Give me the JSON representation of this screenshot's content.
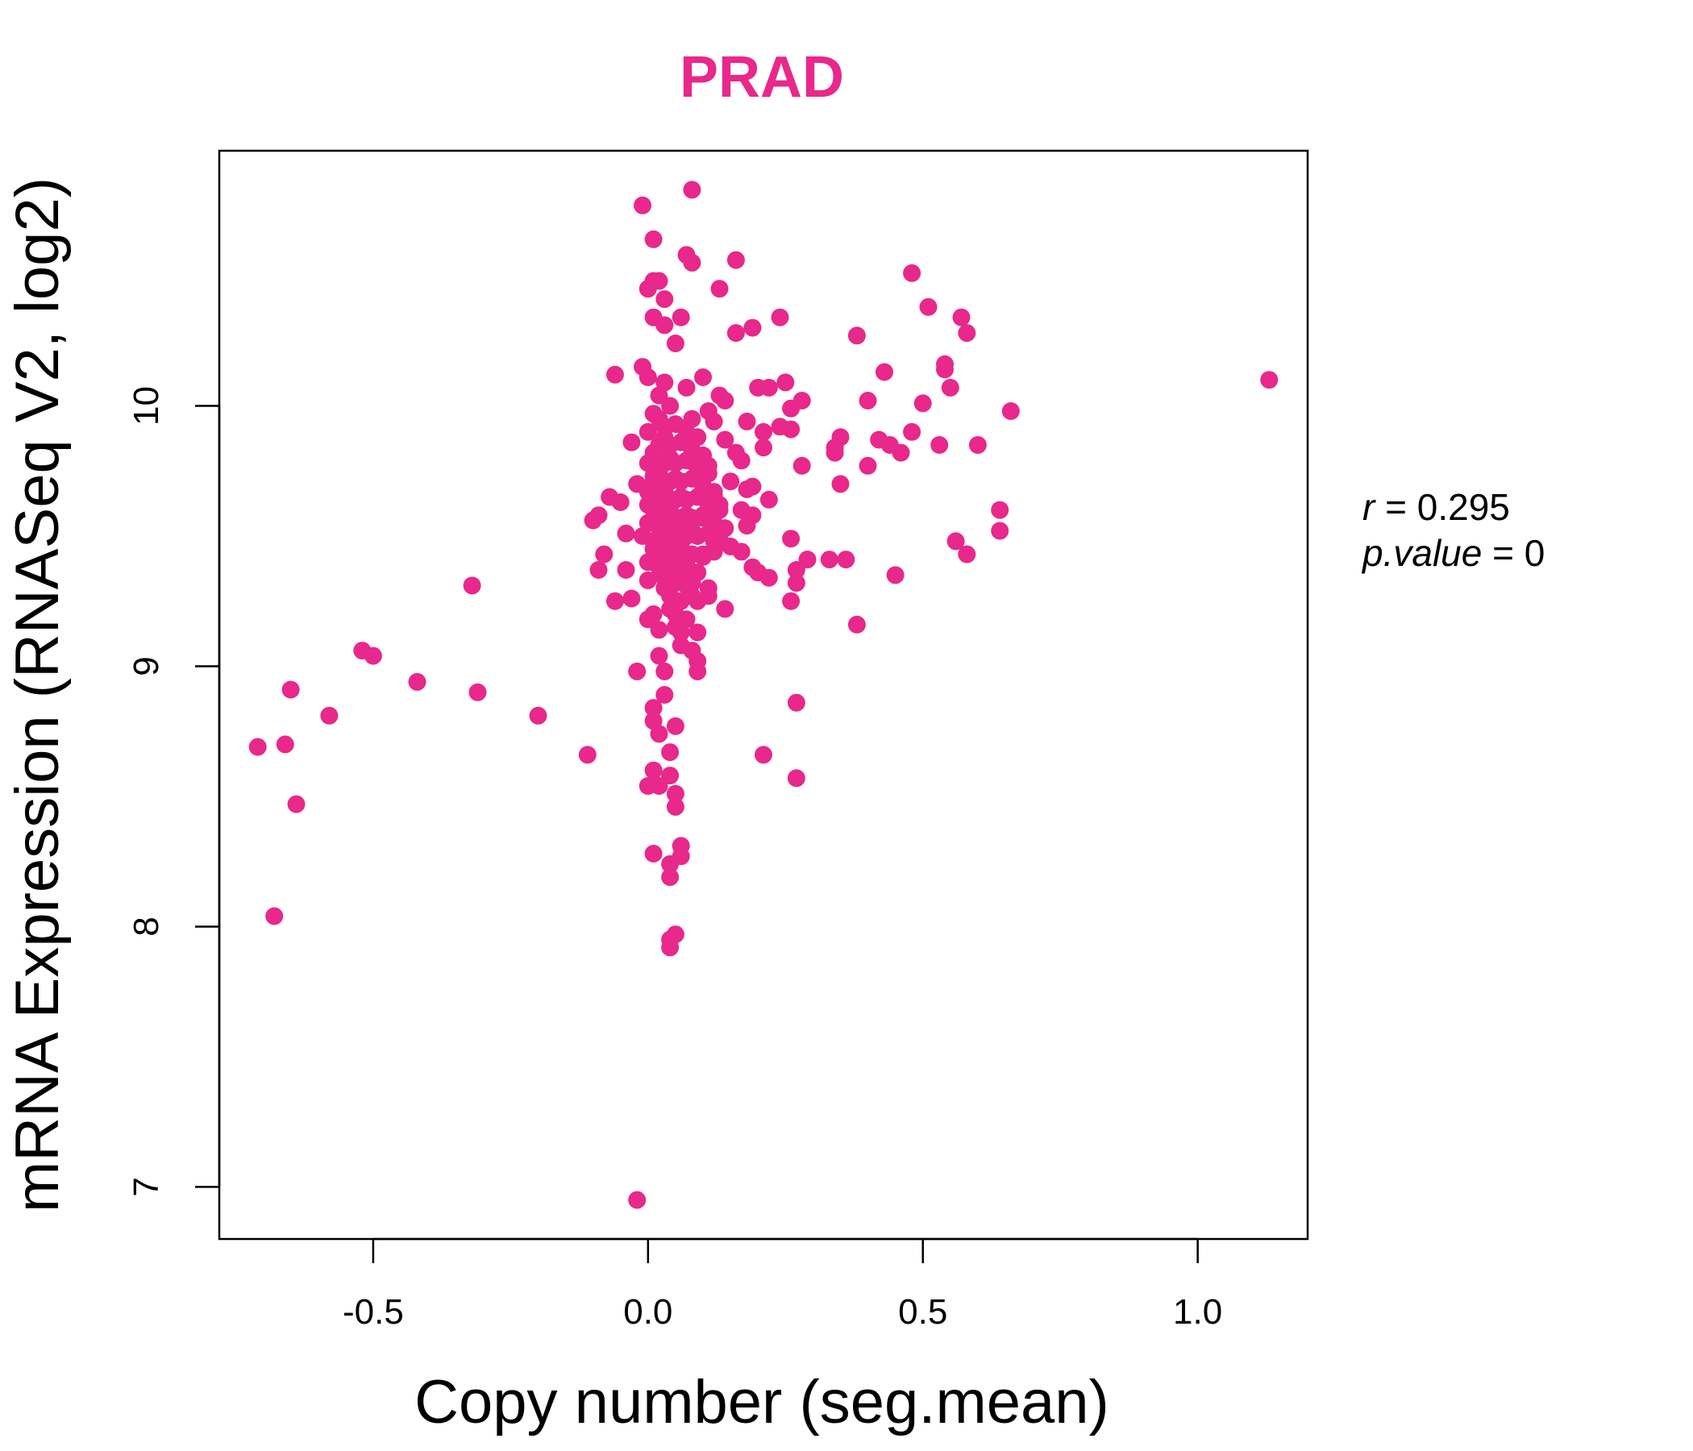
{
  "chart_data": {
    "type": "scatter",
    "title": "PRAD",
    "xlabel": "Copy number (seg.mean)",
    "ylabel": "mRNA Expression (RNASeq V2, log2)",
    "xlim": [
      -0.78,
      1.2
    ],
    "ylim": [
      6.8,
      10.98
    ],
    "xticks": [
      "-0.5",
      "0.0",
      "0.5",
      "1.0"
    ],
    "yticks": [
      "7",
      "8",
      "9",
      "10"
    ],
    "grid": false,
    "point_color": "#E8288A",
    "title_color": "#E8288A",
    "stats": {
      "r_key": "r",
      "r_value": "0.295",
      "p_key": "p.value",
      "p_value": "0"
    },
    "points": [
      [
        1.13,
        10.1
      ],
      [
        0.66,
        9.98
      ],
      [
        0.64,
        9.6
      ],
      [
        0.64,
        9.52
      ],
      [
        0.6,
        9.85
      ],
      [
        0.58,
        9.43
      ],
      [
        0.58,
        10.28
      ],
      [
        0.57,
        10.34
      ],
      [
        0.56,
        9.48
      ],
      [
        0.55,
        10.07
      ],
      [
        0.54,
        10.14
      ],
      [
        0.54,
        10.16
      ],
      [
        0.53,
        9.85
      ],
      [
        0.51,
        10.38
      ],
      [
        0.5,
        10.01
      ],
      [
        0.48,
        10.51
      ],
      [
        0.48,
        9.9
      ],
      [
        0.46,
        9.82
      ],
      [
        0.45,
        9.35
      ],
      [
        0.44,
        9.85
      ],
      [
        0.43,
        10.13
      ],
      [
        0.42,
        9.87
      ],
      [
        0.4,
        10.02
      ],
      [
        0.4,
        9.77
      ],
      [
        0.38,
        9.16
      ],
      [
        0.38,
        10.27
      ],
      [
        0.36,
        9.41
      ],
      [
        0.35,
        9.7
      ],
      [
        0.35,
        9.88
      ],
      [
        0.34,
        9.84
      ],
      [
        0.34,
        9.82
      ],
      [
        0.33,
        9.41
      ],
      [
        0.29,
        9.41
      ],
      [
        0.28,
        9.77
      ],
      [
        0.28,
        10.02
      ],
      [
        0.27,
        9.37
      ],
      [
        0.27,
        8.86
      ],
      [
        0.27,
        8.57
      ],
      [
        0.27,
        9.32
      ],
      [
        0.26,
        9.25
      ],
      [
        0.26,
        9.49
      ],
      [
        0.26,
        9.99
      ],
      [
        0.26,
        9.91
      ],
      [
        0.25,
        10.09
      ],
      [
        0.24,
        10.34
      ],
      [
        0.24,
        9.92
      ],
      [
        0.22,
        9.64
      ],
      [
        0.22,
        9.34
      ],
      [
        0.22,
        10.07
      ],
      [
        0.21,
        9.84
      ],
      [
        0.21,
        8.66
      ],
      [
        0.21,
        9.9
      ],
      [
        0.2,
        9.36
      ],
      [
        0.2,
        10.07
      ],
      [
        0.19,
        10.3
      ],
      [
        0.19,
        9.38
      ],
      [
        0.19,
        9.69
      ],
      [
        0.19,
        9.58
      ],
      [
        0.18,
        9.54
      ],
      [
        0.18,
        9.94
      ],
      [
        0.18,
        9.68
      ],
      [
        0.17,
        9.44
      ],
      [
        0.17,
        9.79
      ],
      [
        0.17,
        9.6
      ],
      [
        0.16,
        10.28
      ],
      [
        0.16,
        9.82
      ],
      [
        0.16,
        10.56
      ],
      [
        0.15,
        9.71
      ],
      [
        0.14,
        9.87
      ],
      [
        0.14,
        9.22
      ],
      [
        0.14,
        10.02
      ],
      [
        0.13,
        10.04
      ],
      [
        0.13,
        10.45
      ],
      [
        0.13,
        9.62
      ],
      [
        0.13,
        9.49
      ],
      [
        0.12,
        9.66
      ],
      [
        0.12,
        9.94
      ],
      [
        0.12,
        9.48
      ],
      [
        0.11,
        9.77
      ],
      [
        0.11,
        9.27
      ],
      [
        0.11,
        9.3
      ],
      [
        0.11,
        9.98
      ],
      [
        0.1,
        10.11
      ],
      [
        0.1,
        9.42
      ],
      [
        0.1,
        9.57
      ],
      [
        0.1,
        9.72
      ],
      [
        0.09,
        9.02
      ],
      [
        0.09,
        8.98
      ],
      [
        0.09,
        9.13
      ],
      [
        0.08,
        10.55
      ],
      [
        0.08,
        10.83
      ],
      [
        0.08,
        9.06
      ],
      [
        0.08,
        9.27
      ],
      [
        0.07,
        9.86
      ],
      [
        0.07,
        10.58
      ],
      [
        0.07,
        10.07
      ],
      [
        0.06,
        8.27
      ],
      [
        0.06,
        8.31
      ],
      [
        0.06,
        9.57
      ],
      [
        0.06,
        10.34
      ],
      [
        0.05,
        7.97
      ],
      [
        0.05,
        8.46
      ],
      [
        0.05,
        8.51
      ],
      [
        0.05,
        8.77
      ],
      [
        0.05,
        10.24
      ],
      [
        0.04,
        7.92
      ],
      [
        0.04,
        7.95
      ],
      [
        0.04,
        8.19
      ],
      [
        0.04,
        8.24
      ],
      [
        0.04,
        8.58
      ],
      [
        0.04,
        8.67
      ],
      [
        0.03,
        8.89
      ],
      [
        0.03,
        8.98
      ],
      [
        0.03,
        10.31
      ],
      [
        0.03,
        10.41
      ],
      [
        0.02,
        8.54
      ],
      [
        0.02,
        8.74
      ],
      [
        0.02,
        10.48
      ],
      [
        0.02,
        9.14
      ],
      [
        0.02,
        9.04
      ],
      [
        0.01,
        8.28
      ],
      [
        0.01,
        8.6
      ],
      [
        0.01,
        8.79
      ],
      [
        0.01,
        8.84
      ],
      [
        0.01,
        10.34
      ],
      [
        0.01,
        10.64
      ],
      [
        0.01,
        10.48
      ],
      [
        0.0,
        8.54
      ],
      [
        0.0,
        10.45
      ],
      [
        0.0,
        10.11
      ],
      [
        -0.01,
        10.77
      ],
      [
        -0.01,
        10.15
      ],
      [
        -0.01,
        9.5
      ],
      [
        -0.02,
        6.95
      ],
      [
        -0.02,
        8.98
      ],
      [
        -0.02,
        9.7
      ],
      [
        -0.03,
        9.86
      ],
      [
        -0.03,
        9.26
      ],
      [
        -0.04,
        9.37
      ],
      [
        -0.04,
        9.51
      ],
      [
        -0.05,
        9.63
      ],
      [
        -0.06,
        9.25
      ],
      [
        -0.06,
        10.12
      ],
      [
        -0.07,
        9.65
      ],
      [
        -0.08,
        9.43
      ],
      [
        -0.09,
        9.58
      ],
      [
        -0.09,
        9.37
      ],
      [
        -0.1,
        9.56
      ],
      [
        -0.11,
        8.66
      ],
      [
        -0.2,
        8.81
      ],
      [
        -0.31,
        8.9
      ],
      [
        -0.32,
        9.31
      ],
      [
        -0.42,
        8.94
      ],
      [
        -0.5,
        9.04
      ],
      [
        -0.52,
        9.06
      ],
      [
        -0.58,
        8.81
      ],
      [
        -0.64,
        8.47
      ],
      [
        -0.65,
        8.91
      ],
      [
        -0.66,
        8.7
      ],
      [
        -0.68,
        8.04
      ],
      [
        -0.71,
        8.69
      ],
      [
        0.02,
        9.95
      ],
      [
        0.03,
        9.88
      ],
      [
        0.04,
        9.8
      ],
      [
        0.05,
        9.72
      ],
      [
        0.06,
        9.65
      ],
      [
        0.07,
        9.58
      ],
      [
        0.08,
        9.52
      ],
      [
        0.01,
        9.45
      ],
      [
        0.02,
        9.38
      ],
      [
        0.03,
        9.3
      ],
      [
        0.04,
        9.22
      ],
      [
        0.05,
        9.15
      ],
      [
        0.06,
        9.08
      ],
      [
        0.0,
        9.9
      ],
      [
        0.01,
        9.82
      ],
      [
        0.02,
        9.75
      ],
      [
        0.03,
        9.68
      ],
      [
        0.04,
        9.6
      ],
      [
        0.05,
        9.53
      ],
      [
        0.06,
        9.46
      ],
      [
        0.07,
        9.39
      ],
      [
        0.08,
        9.32
      ],
      [
        0.09,
        9.25
      ],
      [
        0.0,
        9.67
      ],
      [
        0.01,
        9.6
      ],
      [
        0.02,
        9.53
      ],
      [
        0.03,
        9.46
      ],
      [
        0.04,
        9.39
      ],
      [
        0.05,
        9.32
      ],
      [
        0.06,
        9.25
      ],
      [
        0.07,
        9.18
      ],
      [
        0.01,
        9.97
      ],
      [
        0.02,
        10.04
      ],
      [
        0.03,
        10.09
      ],
      [
        0.04,
        10.0
      ],
      [
        0.05,
        9.93
      ],
      [
        0.06,
        9.86
      ],
      [
        0.07,
        9.79
      ],
      [
        0.08,
        9.72
      ],
      [
        0.09,
        9.65
      ],
      [
        0.1,
        9.58
      ],
      [
        0.11,
        9.51
      ],
      [
        0.12,
        9.44
      ],
      [
        0.0,
        9.55
      ],
      [
        0.01,
        9.48
      ],
      [
        0.02,
        9.41
      ],
      [
        0.03,
        9.34
      ],
      [
        0.04,
        9.27
      ],
      [
        0.05,
        9.2
      ],
      [
        0.06,
        9.13
      ],
      [
        0.03,
        9.92
      ],
      [
        0.04,
        9.85
      ],
      [
        0.05,
        9.78
      ],
      [
        0.06,
        9.71
      ],
      [
        0.07,
        9.64
      ],
      [
        0.08,
        9.57
      ],
      [
        0.09,
        9.5
      ],
      [
        0.1,
        9.43
      ],
      [
        0.02,
        9.85
      ],
      [
        0.03,
        9.78
      ],
      [
        0.04,
        9.71
      ],
      [
        0.05,
        9.64
      ],
      [
        0.06,
        9.57
      ],
      [
        0.07,
        9.5
      ],
      [
        0.08,
        9.43
      ],
      [
        0.09,
        9.36
      ],
      [
        0.01,
        9.73
      ],
      [
        0.02,
        9.66
      ],
      [
        0.03,
        9.59
      ],
      [
        0.04,
        9.52
      ],
      [
        0.05,
        9.45
      ],
      [
        0.06,
        9.38
      ],
      [
        0.07,
        9.31
      ],
      [
        0.0,
        9.78
      ],
      [
        0.01,
        9.71
      ],
      [
        0.02,
        9.64
      ],
      [
        0.03,
        9.57
      ],
      [
        0.04,
        9.5
      ],
      [
        0.05,
        9.43
      ],
      [
        0.06,
        9.36
      ],
      [
        0.08,
        9.95
      ],
      [
        0.09,
        9.88
      ],
      [
        0.1,
        9.81
      ],
      [
        0.11,
        9.74
      ],
      [
        0.12,
        9.67
      ],
      [
        0.13,
        9.6
      ],
      [
        0.14,
        9.53
      ],
      [
        0.15,
        9.46
      ],
      [
        0.07,
        9.9
      ],
      [
        0.08,
        9.83
      ],
      [
        0.09,
        9.76
      ],
      [
        0.1,
        9.69
      ],
      [
        0.11,
        9.62
      ],
      [
        0.12,
        9.55
      ],
      [
        0.13,
        9.48
      ],
      [
        0.0,
        9.62
      ],
      [
        0.0,
        9.4
      ],
      [
        0.0,
        9.33
      ],
      [
        0.0,
        9.18
      ],
      [
        0.01,
        9.2
      ]
    ]
  }
}
